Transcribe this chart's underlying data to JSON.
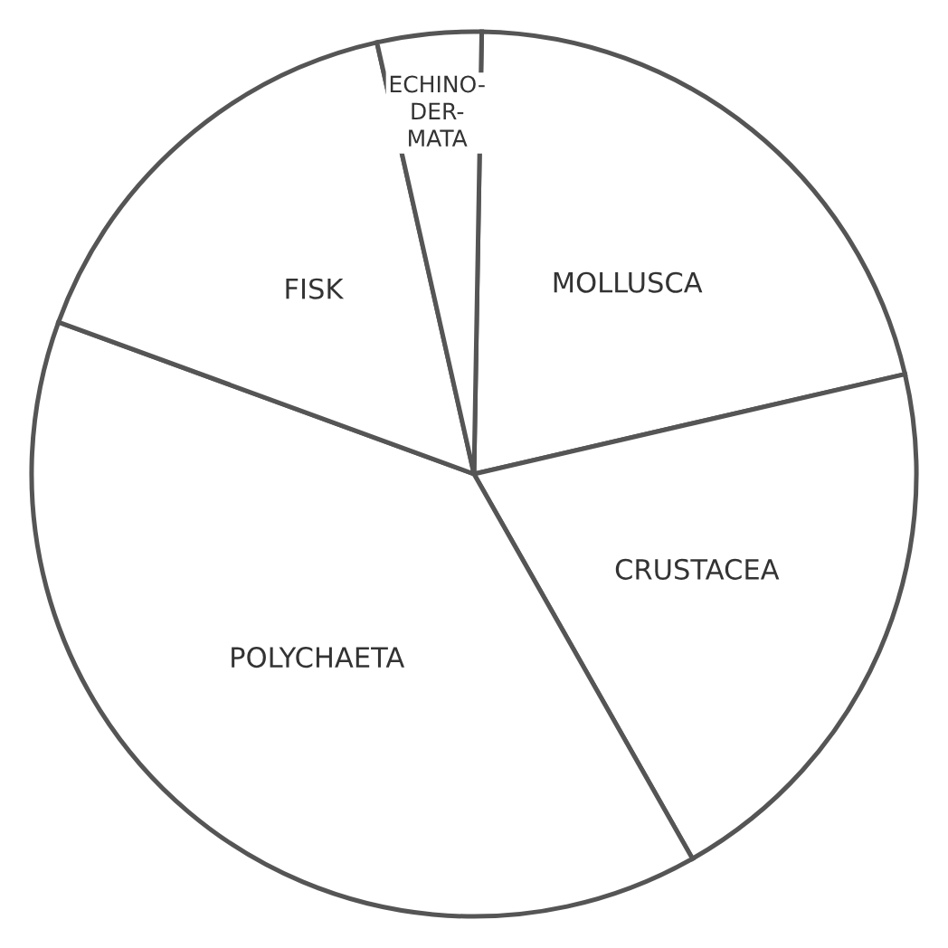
{
  "chart_data": {
    "type": "pie",
    "categories": [
      "MOLLUSCA",
      "CRUSTACEA",
      "POLYCHAETA",
      "FISK",
      "ECHINO-\nDER-\nMATA"
    ],
    "values": [
      21.1,
      20.4,
      38.8,
      15.9,
      3.8
    ],
    "colors": [
      "#ffffff",
      "#ffffff",
      "#ffffff",
      "#ffffff",
      "#ffffff"
    ]
  }
}
